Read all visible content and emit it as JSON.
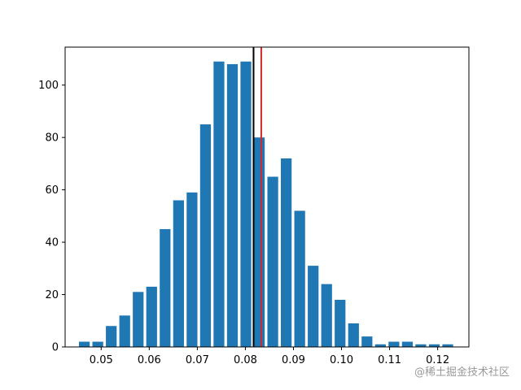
{
  "chart_data": {
    "type": "bar",
    "x": [
      0.0465,
      0.0493,
      0.0521,
      0.0549,
      0.0577,
      0.0605,
      0.0633,
      0.0661,
      0.0689,
      0.0717,
      0.0745,
      0.0773,
      0.0801,
      0.0829,
      0.0857,
      0.0885,
      0.0913,
      0.0941,
      0.0969,
      0.0997,
      0.1025,
      0.1053,
      0.1081,
      0.1109,
      0.1137,
      0.1165,
      0.1193,
      0.1221
    ],
    "values": [
      2,
      2,
      8,
      12,
      21,
      23,
      45,
      56,
      59,
      85,
      109,
      108,
      109,
      80,
      65,
      72,
      52,
      31,
      24,
      18,
      9,
      4,
      1,
      2,
      2,
      1,
      1,
      1
    ],
    "xlim": [
      0.0425,
      0.1265
    ],
    "ylim": [
      0,
      114.5
    ],
    "xticks": [
      "0.05",
      "0.06",
      "0.07",
      "0.08",
      "0.09",
      "0.10",
      "0.11",
      "0.12"
    ],
    "xtick_values": [
      0.05,
      0.06,
      0.07,
      0.08,
      0.09,
      0.1,
      0.11,
      0.12
    ],
    "yticks": [
      "0",
      "20",
      "40",
      "60",
      "80",
      "100"
    ],
    "ytick_values": [
      0,
      20,
      40,
      60,
      80,
      100
    ],
    "bar_color": "#1f77b4",
    "vlines": [
      {
        "x": 0.0817,
        "color": "#000000"
      },
      {
        "x": 0.0833,
        "color": "#d62728"
      }
    ],
    "grid": false,
    "title": "",
    "xlabel": "",
    "ylabel": ""
  },
  "watermark": "@稀土掘金技术社区"
}
